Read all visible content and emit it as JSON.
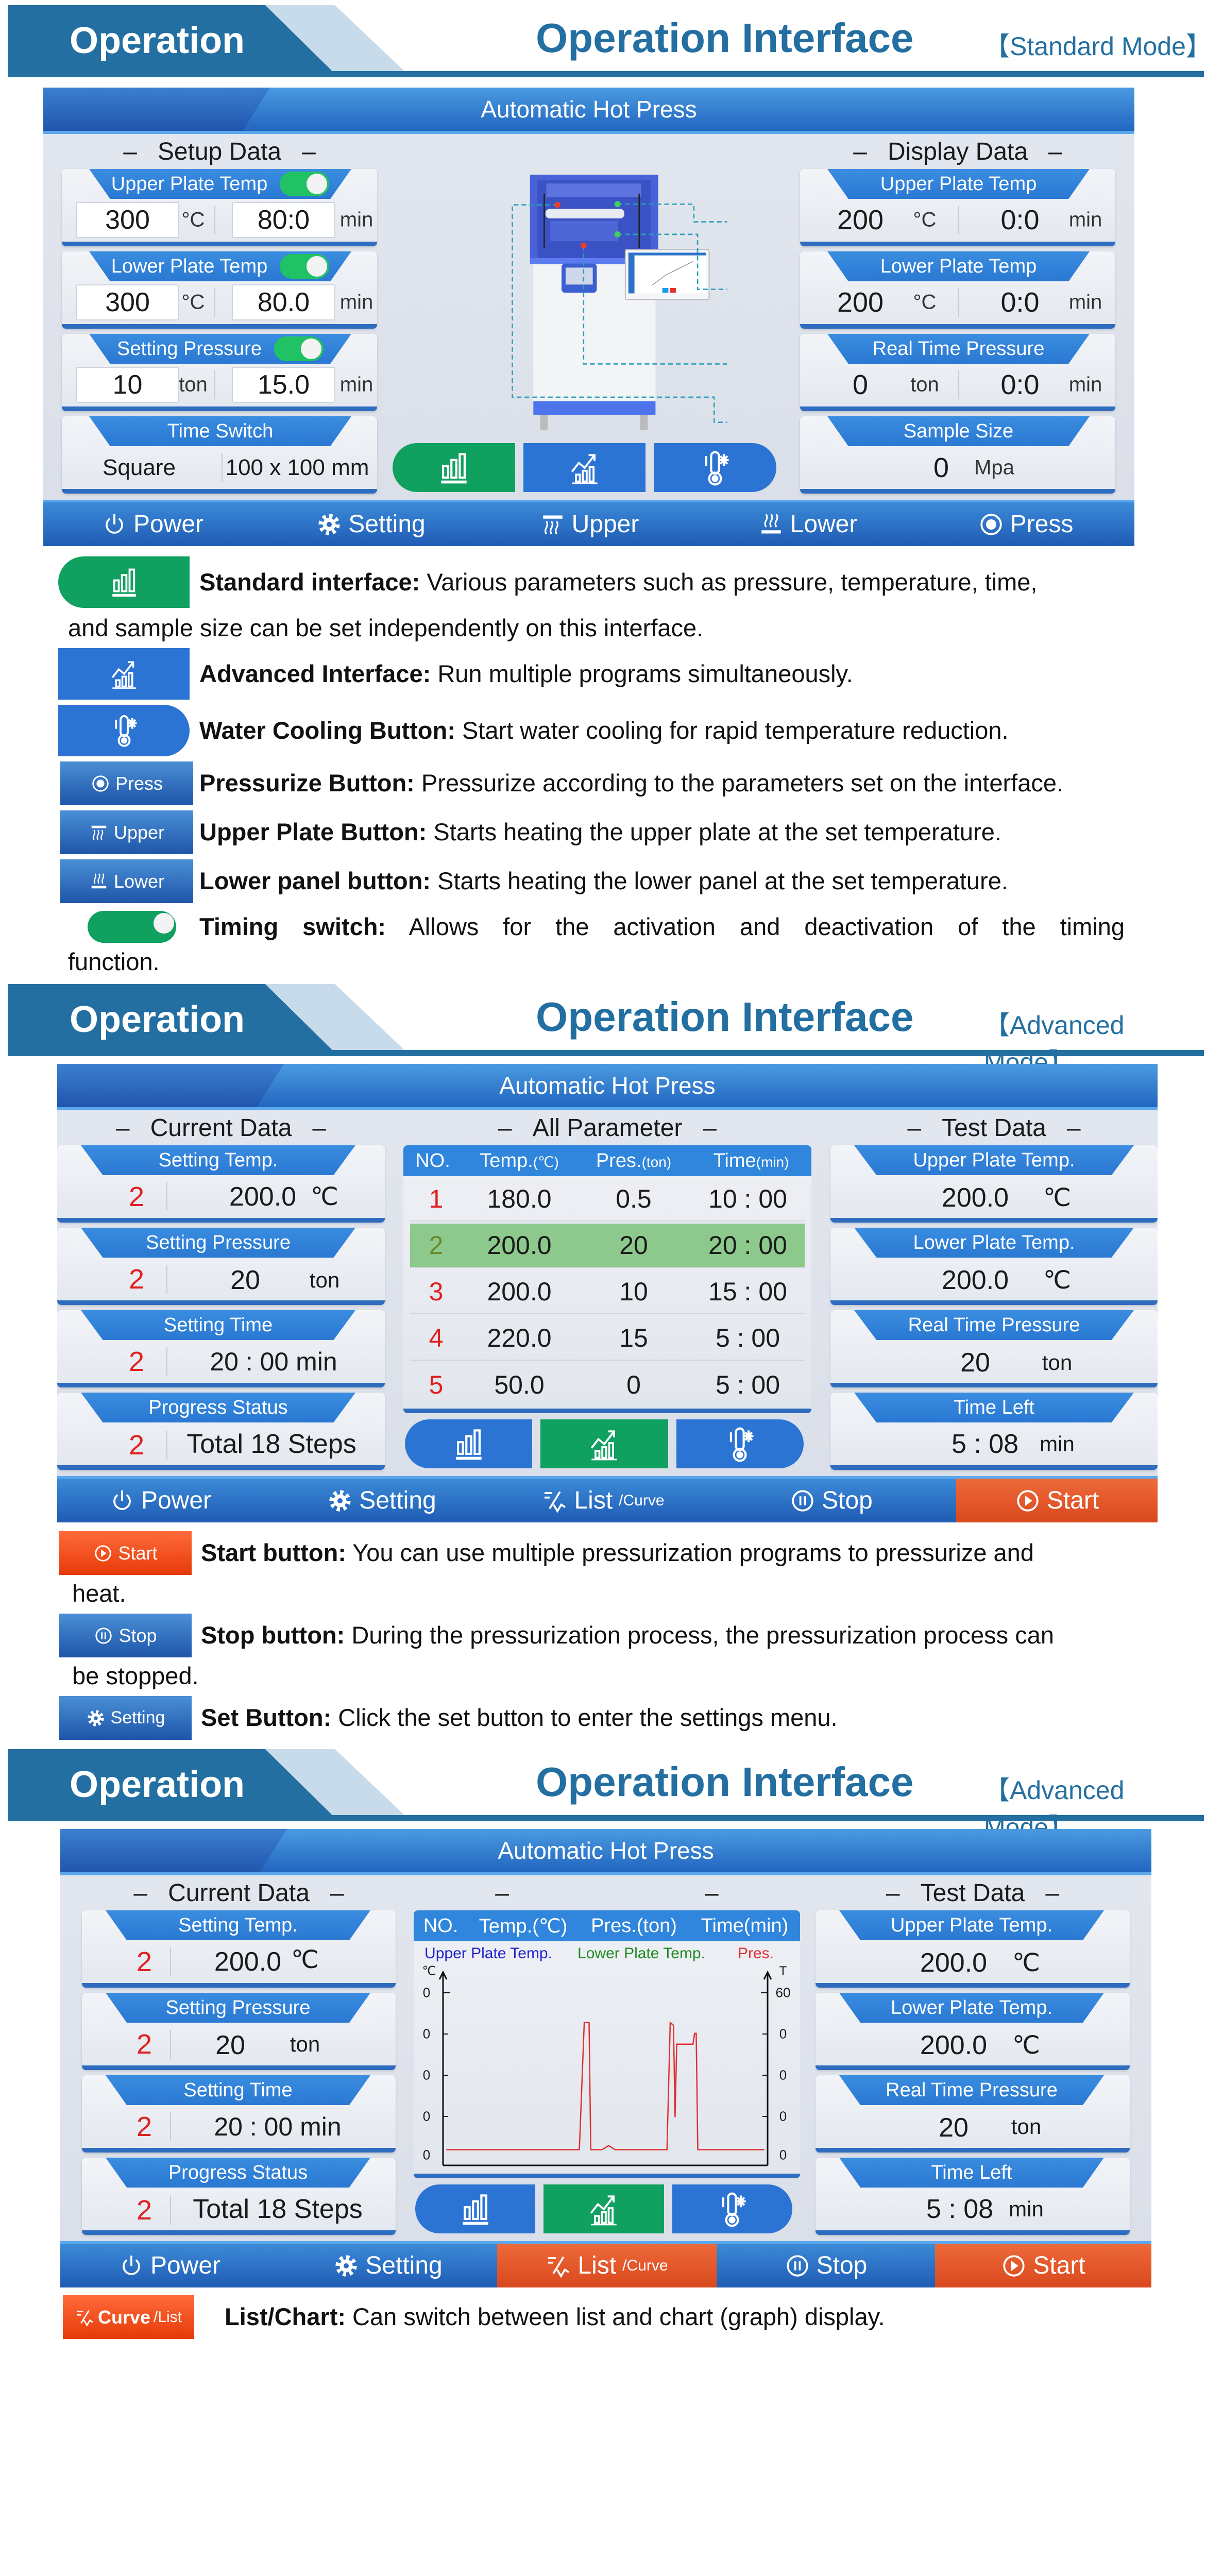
{
  "colors": {
    "brand_blue": "#236fa1",
    "screen_blue": "#2f86dc",
    "green": "#10a060",
    "orange": "#e64a1c",
    "toggle_on": "#21c264",
    "step_red": "#e02020"
  },
  "sections": [
    {
      "tag": "Operation",
      "title": "Operation Interface",
      "mode": "【Standard Mode】"
    },
    {
      "tag": "Operation",
      "title": "Operation Interface",
      "mode": "【Advanced Mode】"
    },
    {
      "tag": "Operation",
      "title": "Operation Interface",
      "mode": "【Advanced Mode】"
    }
  ],
  "s1": {
    "title": "Automatic Hot Press",
    "setup_title": "Setup Data",
    "display_title": "Display Data",
    "setup": [
      {
        "title": "Upper Plate Temp",
        "value1": "300",
        "unit1": "°C",
        "value2": "80:0",
        "unit2": "min",
        "toggle": "on"
      },
      {
        "title": "Lower Plate Temp",
        "value1": "300",
        "unit1": "°C",
        "value2": "80.0",
        "unit2": "min",
        "toggle": "on"
      },
      {
        "title": "Setting Pressure",
        "value1": "10",
        "unit1": "ton",
        "value2": "15.0",
        "unit2": "min",
        "toggle": "on"
      },
      {
        "title": "Time Switch",
        "value1": "Square",
        "value2": "100 x 100 mm"
      }
    ],
    "display": [
      {
        "title": "Upper Plate Temp",
        "value1": "200",
        "unit1": "°C",
        "value2": "0:0",
        "unit2": "min"
      },
      {
        "title": "Lower Plate Temp",
        "value1": "200",
        "unit1": "°C",
        "value2": "0:0",
        "unit2": "min"
      },
      {
        "title": "Real Time Pressure",
        "value1": "0",
        "unit1": "ton",
        "value2": "0:0",
        "unit2": "min"
      },
      {
        "title": "Sample Size",
        "value1": "0",
        "unit1": "Mpa"
      }
    ],
    "mode_buttons": [
      {
        "icon": "bar-chart-icon",
        "active": true
      },
      {
        "icon": "trend-chart-icon"
      },
      {
        "icon": "water-cooling-icon"
      }
    ],
    "bottom": [
      {
        "label": "Power",
        "icon": "power-icon"
      },
      {
        "label": "Setting",
        "icon": "gear-icon"
      },
      {
        "label": "Upper",
        "icon": "upper-heat-icon"
      },
      {
        "label": "Lower",
        "icon": "lower-heat-icon"
      },
      {
        "label": "Press",
        "icon": "press-icon"
      }
    ]
  },
  "d1": [
    {
      "label": "Standard interface:",
      "text": " Various parameters such as pressure, temperature, time,",
      "cont": "and sample size can be set independently on this interface."
    },
    {
      "label": "Advanced Interface:",
      "text": " Run multiple programs simultaneously."
    },
    {
      "label": "Water Cooling Button:",
      "text": " Start water cooling for rapid temperature reduction."
    },
    {
      "label": "Pressurize Button:",
      "text": " Pressurize according to the parameters set on the interface.",
      "btn": "Press"
    },
    {
      "label": "Upper Plate Button:",
      "text": " Starts heating the upper plate at the set temperature.",
      "btn": "Upper"
    },
    {
      "label": "Lower panel button:",
      "text": " Starts heating the lower panel at the set temperature.",
      "btn": "Lower"
    },
    {
      "label": "Timing switch:",
      "text": " Allows for the activation and deactivation of the timing",
      "cont": "function."
    }
  ],
  "s2": {
    "title": "Automatic Hot Press",
    "current_title": "Current Data",
    "all_title": "All Parameter",
    "test_title": "Test Data",
    "current": [
      {
        "title": "Setting Temp.",
        "step": "2",
        "value": "200.0",
        "unit": "℃"
      },
      {
        "title": "Setting Pressure",
        "step": "2",
        "value": "20",
        "unit": "ton"
      },
      {
        "title": "Setting Time",
        "step": "2",
        "value": "20 : 00 min"
      },
      {
        "title": "Progress Status",
        "step": "2",
        "value": "Total 18 Steps"
      }
    ],
    "test": [
      {
        "title": "Upper Plate Temp.",
        "value": "200.0",
        "unit": "℃"
      },
      {
        "title": "Lower Plate Temp.",
        "value": "200.0",
        "unit": "℃"
      },
      {
        "title": "Real Time Pressure",
        "value": "20",
        "unit": "ton"
      },
      {
        "title": "Time Left",
        "value": "5 : 08",
        "unit": "min"
      }
    ],
    "table": {
      "headers": [
        {
          "main": "NO.",
          "sub": ""
        },
        {
          "main": "Temp.",
          "sub": "(℃)"
        },
        {
          "main": "Pres.",
          "sub": "(ton)"
        },
        {
          "main": "Time",
          "sub": "(min)"
        }
      ],
      "rows": [
        {
          "no": "1",
          "temp": "180.0",
          "pres": "0.5",
          "time": "10 : 00"
        },
        {
          "no": "2",
          "temp": "200.0",
          "pres": "20",
          "time": "20 : 00",
          "selected": true
        },
        {
          "no": "3",
          "temp": "200.0",
          "pres": "10",
          "time": "15 : 00"
        },
        {
          "no": "4",
          "temp": "220.0",
          "pres": "15",
          "time": "5 : 00"
        },
        {
          "no": "5",
          "temp": "50.0",
          "pres": "0",
          "time": "5 : 00"
        }
      ]
    },
    "bottom": [
      {
        "label": "Power"
      },
      {
        "label": "Setting"
      },
      {
        "label": "List",
        "sub": "/Curve"
      },
      {
        "label": "Stop"
      },
      {
        "label": "Start",
        "active": true
      }
    ]
  },
  "d2": [
    {
      "label": "Start button:",
      "text": " You can use multiple pressurization programs to pressurize and",
      "cont": "heat.",
      "btn": "Start"
    },
    {
      "label": "Stop button:",
      "text": " During the pressurization process, the pressurization process can",
      "cont": "be stopped.",
      "btn": "Stop"
    },
    {
      "label": "Set Button:",
      "text": " Click the set button to enter the settings menu.",
      "btn": "Setting"
    }
  ],
  "s3": {
    "title": "Automatic Hot Press",
    "current_title": "Current Data",
    "test_title": "Test Data",
    "current": [
      {
        "title": "Setting Temp.",
        "step": "2",
        "value": "200.0",
        "unit": "℃"
      },
      {
        "title": "Setting Pressure",
        "step": "2",
        "value": "20",
        "unit": "ton"
      },
      {
        "title": "Setting Time",
        "step": "2",
        "value": "20 : 00 min"
      },
      {
        "title": "Progress Status",
        "step": "2",
        "value": "Total 18 Steps"
      }
    ],
    "test": [
      {
        "title": "Upper Plate Temp.",
        "value": "200.0",
        "unit": "℃"
      },
      {
        "title": "Lower Plate Temp.",
        "value": "200.0",
        "unit": "℃"
      },
      {
        "title": "Real Time Pressure",
        "value": "20",
        "unit": "ton"
      },
      {
        "title": "Time Left",
        "value": "5 : 08",
        "unit": "min"
      }
    ],
    "bottom": [
      {
        "label": "Power"
      },
      {
        "label": "Setting"
      },
      {
        "label": "List",
        "sub": "/Curve",
        "active": true
      },
      {
        "label": "Stop"
      },
      {
        "label": "Start",
        "active": true
      }
    ]
  },
  "chart_data": {
    "type": "line",
    "headers": [
      "NO.",
      "Temp.(℃)",
      "Pres.(ton)",
      "Time(min)"
    ],
    "legend": [
      {
        "name": "Upper Plate Temp.",
        "color": "#2222cc"
      },
      {
        "name": "Lower Plate Temp.",
        "color": "#1f8a1f"
      },
      {
        "name": "Pres.",
        "color": "#e03030"
      }
    ],
    "left_axis_unit": "℃",
    "right_axis_unit": "T",
    "left_ticks": [
      "0",
      "0",
      "0",
      "0",
      "0"
    ],
    "right_ticks": [
      "60",
      "0",
      "0",
      "0",
      "0"
    ],
    "right_ylim": [
      0,
      60
    ],
    "xlim": [
      0,
      100
    ],
    "grid": false,
    "legend_placement": "top",
    "series": [
      {
        "name": "Pres.",
        "color": "#e03030",
        "x": [
          1,
          42,
          43.5,
          45,
          45.5,
          49,
          51,
          53,
          69,
          70,
          71,
          71.5,
          72,
          77,
          77.5,
          78,
          78.5,
          99
        ],
        "y": [
          2,
          2,
          49,
          49,
          2,
          2,
          3.5,
          2,
          2,
          49,
          48,
          14,
          41,
          41,
          45,
          45,
          2,
          2
        ]
      }
    ]
  },
  "d3": {
    "label": "List/Chart:",
    "text": " Can switch between list and chart (graph) display.",
    "btn": "Curve",
    "btn_sub": "/List"
  }
}
